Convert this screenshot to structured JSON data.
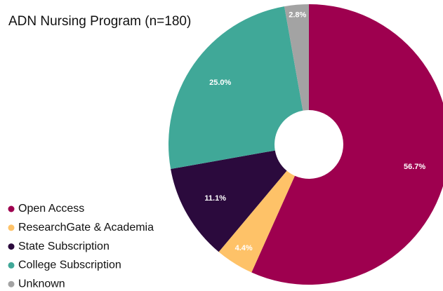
{
  "chart_data": {
    "type": "donut",
    "title": "ADN Nursing Program (n=180)",
    "categories": [
      "Open Access",
      "ResearchGate & Academia",
      "State Subscription",
      "College Subscription",
      "Unknown"
    ],
    "values": [
      56.7,
      4.4,
      11.1,
      25.0,
      2.8
    ],
    "value_labels": [
      "56.7%",
      "4.4%",
      "11.1%",
      "25.0%",
      "2.8%"
    ],
    "colors": [
      "#9e004f",
      "#fec268",
      "#2b0a3d",
      "#40a898",
      "#a3a3a3"
    ],
    "legend": "bottom-left"
  }
}
